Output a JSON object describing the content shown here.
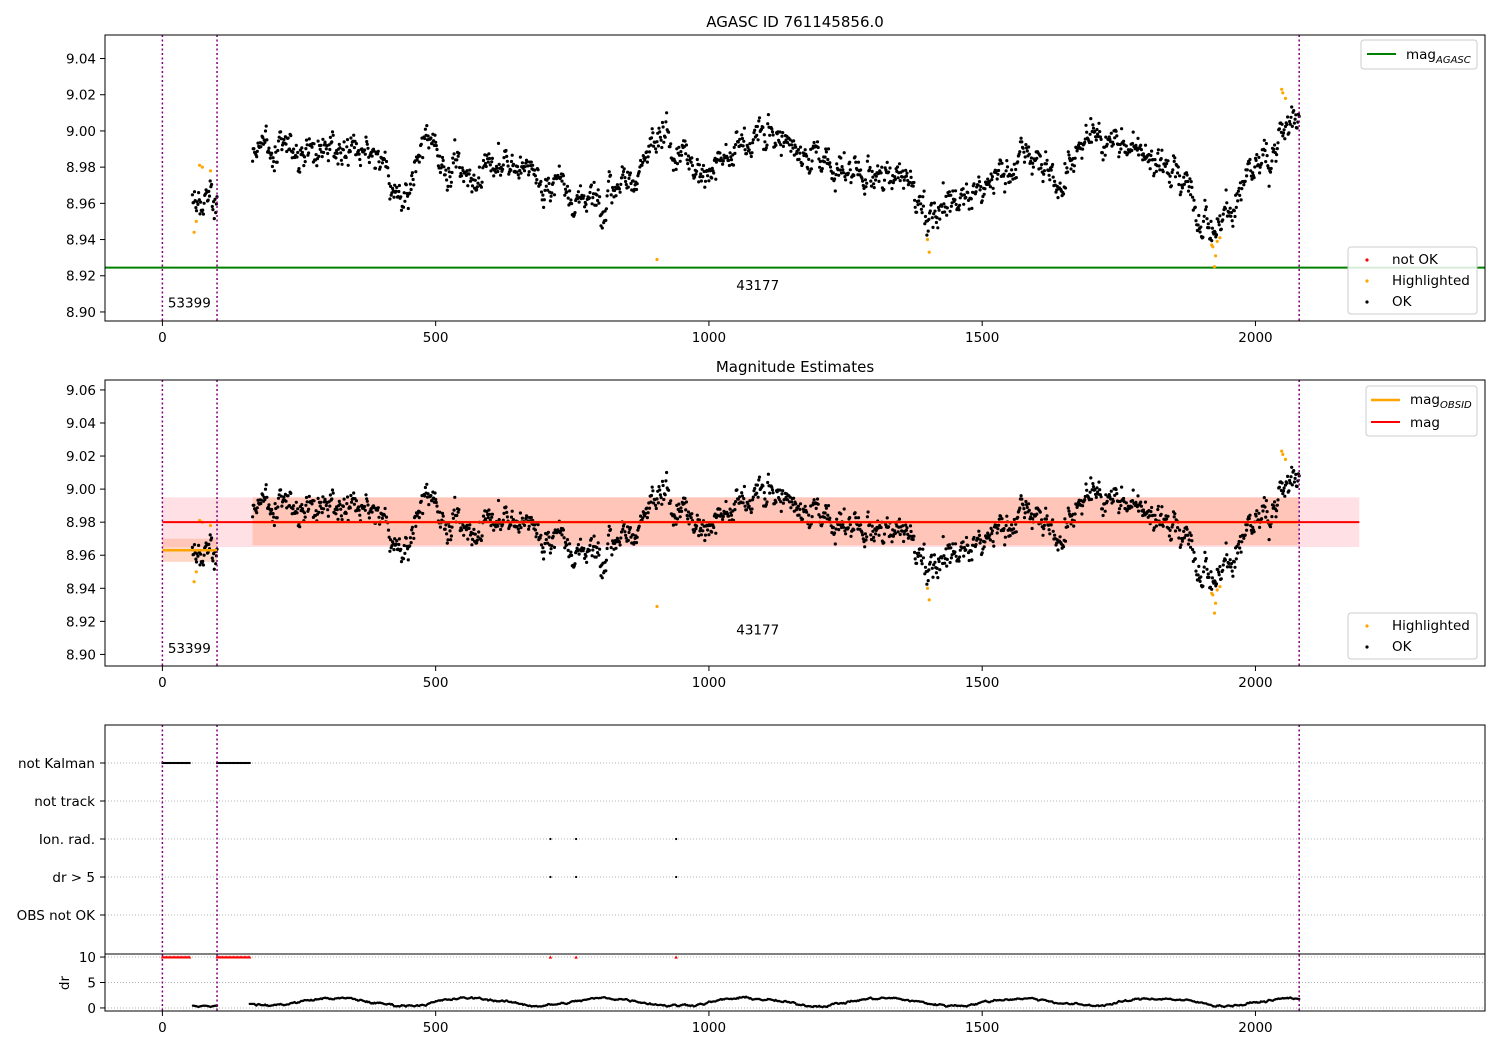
{
  "colors": {
    "ok": "#000000",
    "highlighted": "#ffa500",
    "not_ok": "#ff0000",
    "mag_agasc_line": "#008000",
    "mag_obsid_line": "#ffa500",
    "mag_line": "#ff0000",
    "vline": "#800080",
    "band_total": "#ffb6c1",
    "band_obs": "#ffa07a"
  },
  "chart_data": [
    {
      "type": "scatter",
      "title": "AGASC ID 761145856.0",
      "xlim": [
        -105,
        2420
      ],
      "ylim": [
        8.895,
        9.053
      ],
      "xticks": [
        0,
        500,
        1000,
        1500,
        2000
      ],
      "xtick_labels": [
        "0",
        "500",
        "1000",
        "1500",
        "2000"
      ],
      "yticks": [
        8.9,
        8.92,
        8.94,
        8.96,
        8.98,
        9.0,
        9.02,
        9.04
      ],
      "ytick_labels": [
        "8.90",
        "8.92",
        "8.94",
        "8.96",
        "8.98",
        "9.00",
        "9.02",
        "9.04"
      ],
      "mag_agasc": 8.9245,
      "obs_boundaries": [
        0,
        100,
        2080
      ],
      "obs_labels": [
        {
          "text": "53399",
          "x": 10,
          "y": 8.9025
        },
        {
          "text": "43177",
          "x": 1050,
          "y": 8.912
        }
      ],
      "legend_top": {
        "placement": "top-right",
        "entries": [
          {
            "label": "mag",
            "subscript": "AGASC",
            "kind": "line",
            "color_key": "mag_agasc_line"
          }
        ]
      },
      "legend_bottom": {
        "placement": "bottom-right",
        "entries": [
          {
            "label": "not OK",
            "kind": "dot",
            "color_key": "not_ok"
          },
          {
            "label": "Highlighted",
            "kind": "dot",
            "color_key": "highlighted"
          },
          {
            "label": "OK",
            "kind": "dot",
            "color_key": "ok"
          }
        ]
      },
      "trend_anchors": {
        "x": [
          55,
          100,
          165,
          300,
          350,
          440,
          480,
          560,
          640,
          700,
          760,
          800,
          860,
          920,
          980,
          1050,
          1100,
          1200,
          1300,
          1360,
          1400,
          1480,
          1540,
          1600,
          1640,
          1700,
          1800,
          1860,
          1910,
          1940,
          2000,
          2040,
          2080
        ],
        "y": [
          8.958,
          8.962,
          8.99,
          8.988,
          8.99,
          8.96,
          8.993,
          8.975,
          8.982,
          8.97,
          8.962,
          8.963,
          8.978,
          8.994,
          8.975,
          8.99,
          9.0,
          8.985,
          8.975,
          8.975,
          8.952,
          8.96,
          8.98,
          8.99,
          8.97,
          9.002,
          8.99,
          8.975,
          8.958,
          8.955,
          8.975,
          8.998,
          9.005
        ]
      },
      "highlighted_points": {
        "x": [
          58,
          62,
          68,
          73,
          88,
          905,
          1400,
          1403,
          1920,
          1922,
          1925,
          1927,
          1930,
          1935,
          2048,
          2050,
          2055
        ],
        "y": [
          8.944,
          8.95,
          8.981,
          8.98,
          8.978,
          8.929,
          8.94,
          8.933,
          8.937,
          8.936,
          8.925,
          8.931,
          8.939,
          8.941,
          9.023,
          9.021,
          9.018
        ]
      }
    },
    {
      "type": "scatter",
      "title": "Magnitude Estimates",
      "xlim": [
        -105,
        2420
      ],
      "ylim": [
        8.893,
        9.066
      ],
      "xticks": [
        0,
        500,
        1000,
        1500,
        2000
      ],
      "xtick_labels": [
        "0",
        "500",
        "1000",
        "1500",
        "2000"
      ],
      "yticks": [
        8.9,
        8.92,
        8.94,
        8.96,
        8.98,
        9.0,
        9.02,
        9.04,
        9.06
      ],
      "ytick_labels": [
        "8.90",
        "8.92",
        "8.94",
        "8.96",
        "8.98",
        "9.00",
        "9.02",
        "9.04",
        "9.06"
      ],
      "mag": 8.98,
      "mag_band": [
        8.965,
        8.995
      ],
      "mag_span_x": [
        0,
        2190
      ],
      "mag_obsid": [
        {
          "x": [
            0,
            100
          ],
          "value": 8.963,
          "band": [
            8.956,
            8.97
          ]
        },
        {
          "x": [
            165,
            2080
          ],
          "value": 8.98,
          "band": [
            8.966,
            8.995
          ]
        }
      ],
      "obs_boundaries": [
        0,
        100,
        2080
      ],
      "obs_labels": [
        {
          "text": "53399",
          "x": 10,
          "y": 8.901
        },
        {
          "text": "43177",
          "x": 1050,
          "y": 8.912
        }
      ],
      "legend_top": {
        "placement": "top-right",
        "entries": [
          {
            "label": "mag",
            "subscript": "OBSID",
            "kind": "line",
            "color_key": "mag_obsid_line"
          },
          {
            "label": "mag",
            "kind": "line",
            "color_key": "mag_line"
          }
        ]
      },
      "legend_bottom": {
        "placement": "bottom-right",
        "entries": [
          {
            "label": "Highlighted",
            "kind": "dot",
            "color_key": "highlighted"
          },
          {
            "label": "OK",
            "kind": "dot",
            "color_key": "ok"
          }
        ]
      }
    },
    {
      "type": "scatter",
      "title": "",
      "xlim": [
        -105,
        2420
      ],
      "xticks": [
        0,
        500,
        1000,
        1500,
        2000
      ],
      "xtick_labels": [
        "0",
        "500",
        "1000",
        "1500",
        "2000"
      ],
      "flag_rows": [
        "not Kalman",
        "not track",
        "Ion. rad.",
        "dr > 5",
        "OBS not OK"
      ],
      "flags": {
        "not Kalman": {
          "segments": [
            [
              0,
              52
            ],
            [
              100,
              162
            ]
          ]
        },
        "Ion. rad.": {
          "points": [
            710,
            757,
            940
          ]
        },
        "dr > 5": {
          "points": [
            710,
            757,
            940
          ]
        }
      },
      "dr_ylabel": "dr",
      "dr_yticks": [
        0,
        5,
        10
      ],
      "dr_ytick_labels": [
        "0",
        "5",
        "10"
      ],
      "dr_ylim": [
        -0.6,
        10.6
      ],
      "dr_clipped": {
        "segments": [
          [
            0,
            52
          ],
          [
            100,
            162
          ]
        ],
        "points": [
          710,
          757,
          940
        ],
        "value": 10
      }
    }
  ]
}
